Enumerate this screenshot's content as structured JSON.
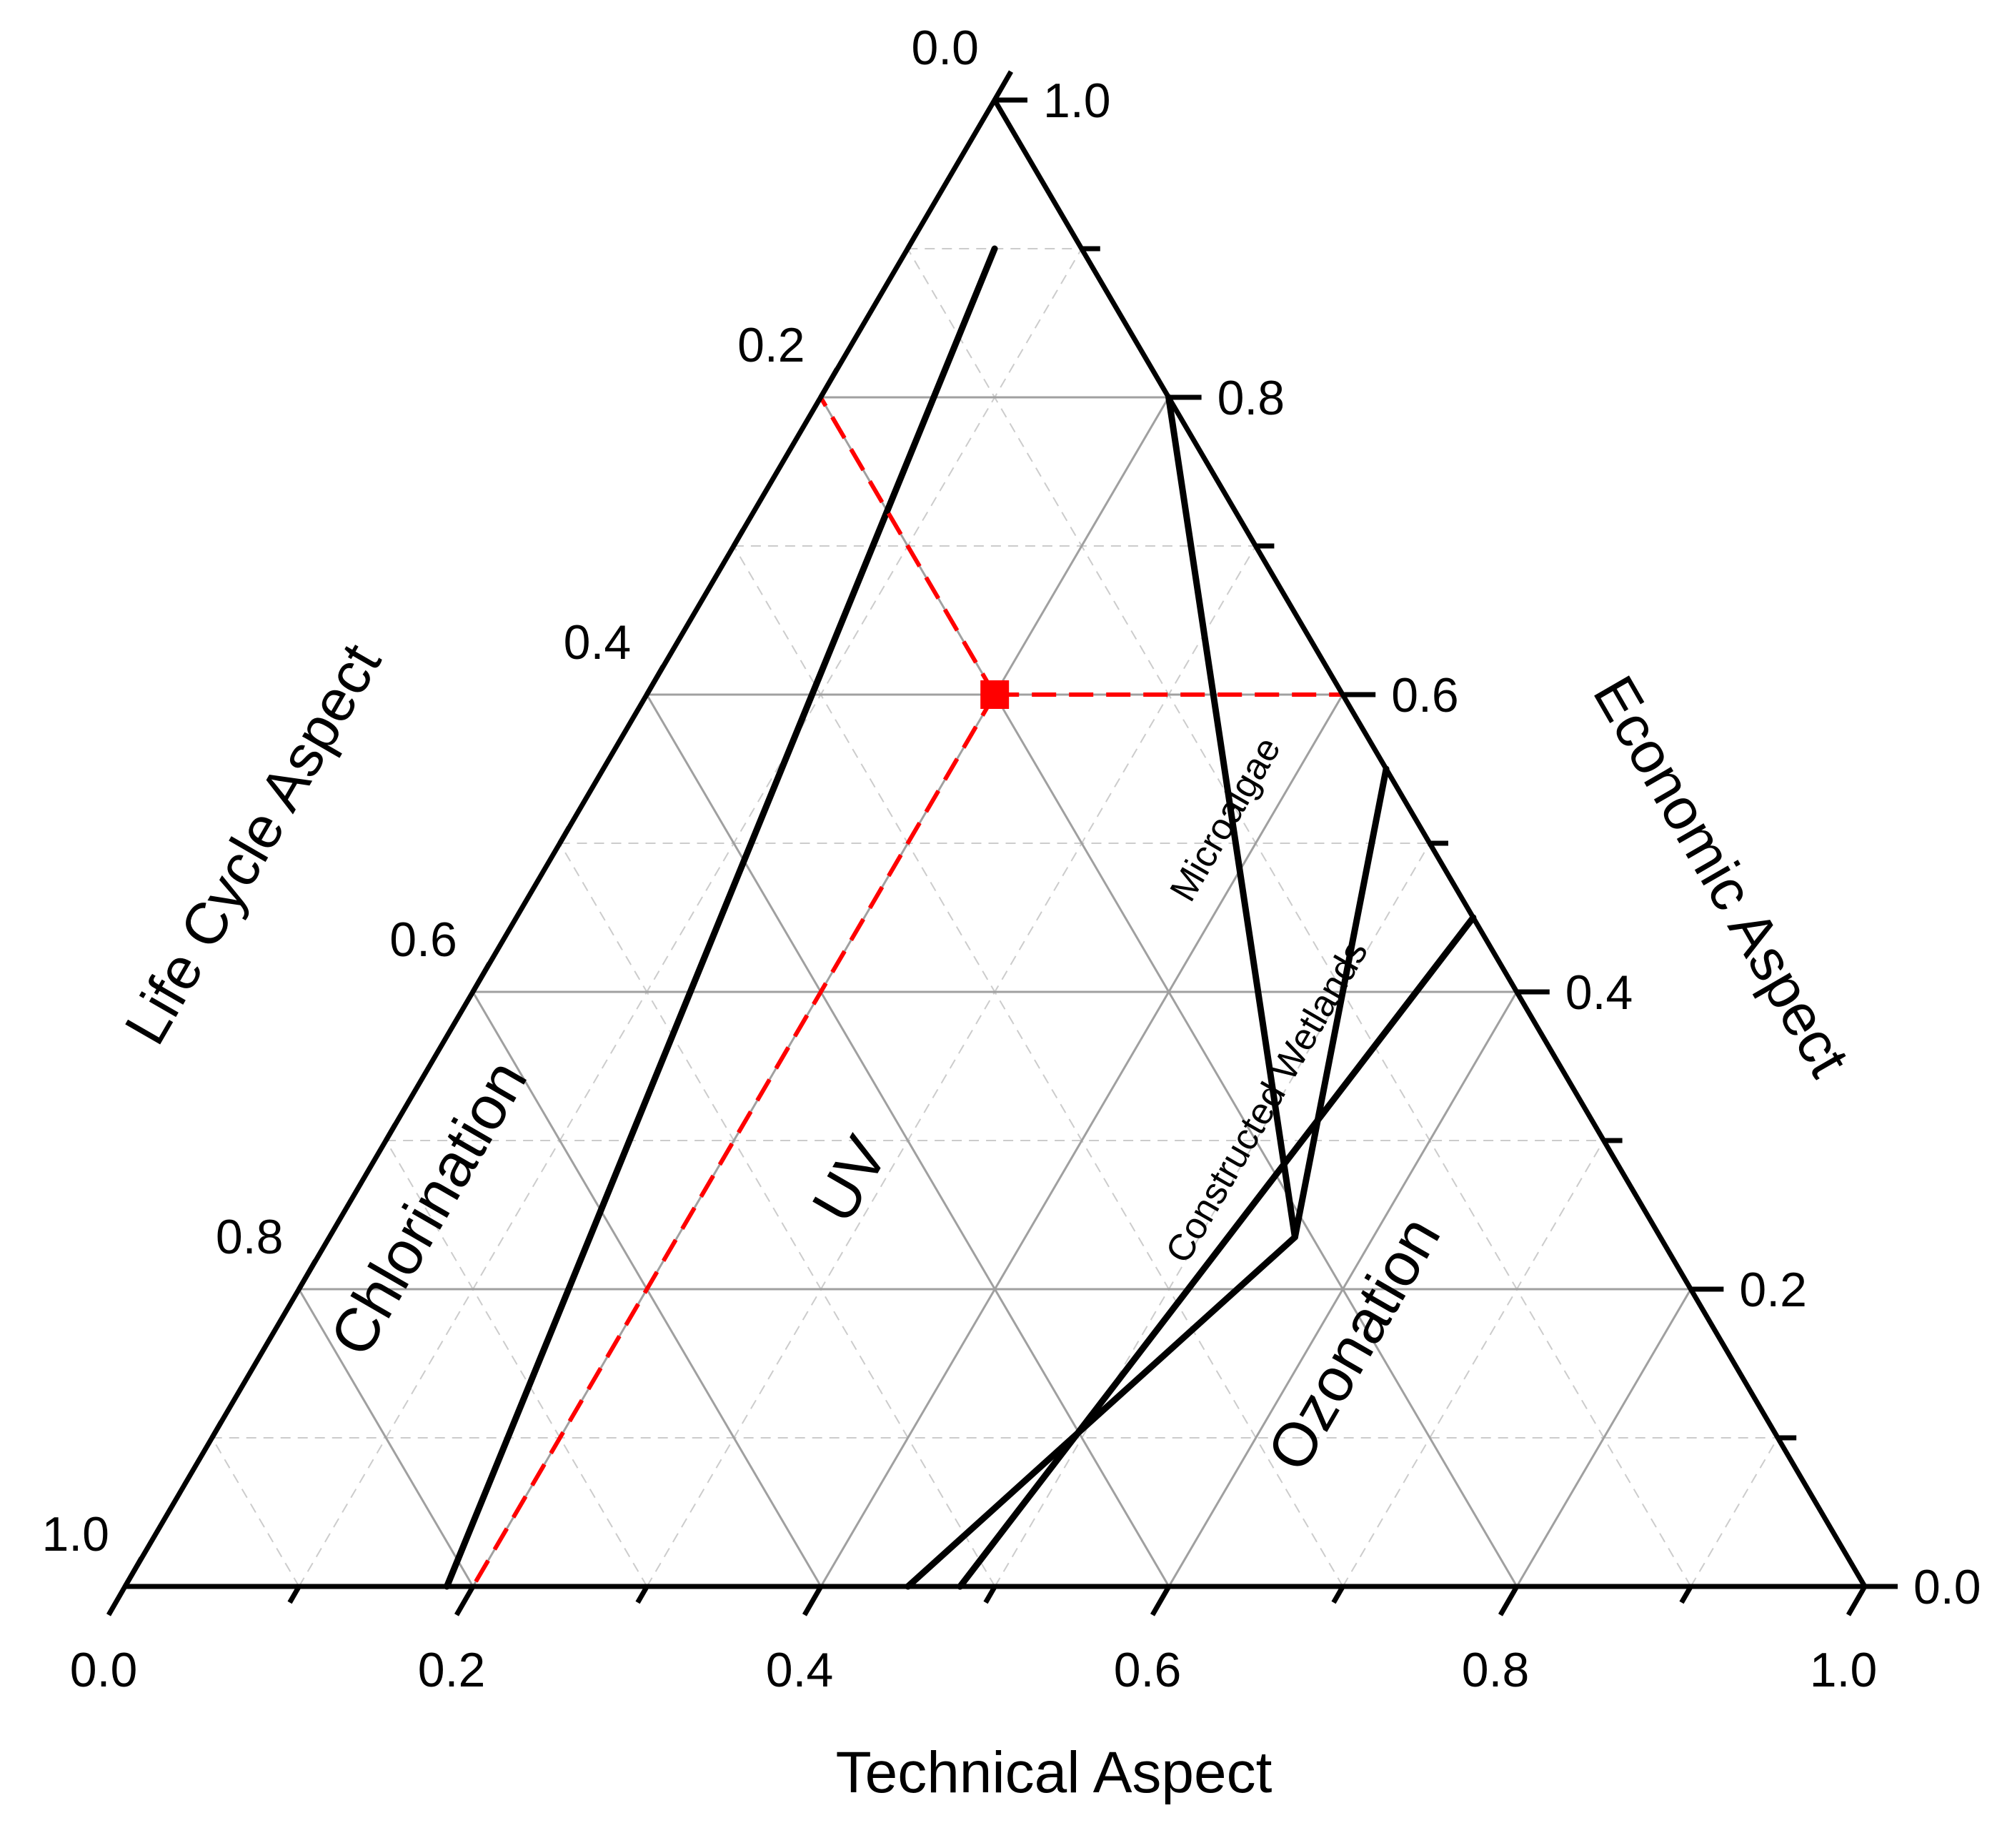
{
  "chart_data": {
    "type": "ternary",
    "axes": {
      "bottom": {
        "label": "Technical Aspect",
        "ticks": [
          "0.0",
          "0.2",
          "0.4",
          "0.6",
          "0.8",
          "1.0"
        ],
        "range": [
          0,
          1
        ]
      },
      "left": {
        "label": "Life Cycle Aspect",
        "ticks": [
          "0.0",
          "0.2",
          "0.4",
          "0.6",
          "0.8",
          "1.0"
        ],
        "range": [
          0,
          1
        ]
      },
      "right": {
        "label": "Economic Aspect",
        "ticks": [
          "0.0",
          "0.2",
          "0.4",
          "0.6",
          "0.8",
          "1.0"
        ],
        "range": [
          0,
          1
        ]
      }
    },
    "grid": {
      "major": 0.2,
      "minor": 0.1
    },
    "regions": [
      {
        "name": "Chlorination"
      },
      {
        "name": "UV"
      },
      {
        "name": "Microalgae"
      },
      {
        "name": "Constructed Wetlands"
      },
      {
        "name": "Ozonation"
      }
    ],
    "boundaries": [
      {
        "between": [
          "Chlorination",
          "UV"
        ],
        "from": {
          "technical": 0.185,
          "economic": 0.0
        },
        "to": {
          "technical": 0.05,
          "economic": 0.9
        }
      },
      {
        "between": [
          "UV",
          "Microalgae"
        ],
        "from": {
          "technical": 0.555,
          "economic": 0.235
        },
        "to": {
          "technical": 0.2,
          "economic": 0.8
        }
      },
      {
        "between": [
          "UV",
          "Constructed Wetlands"
        ],
        "from": {
          "technical": 0.45,
          "economic": 0.0
        },
        "to": {
          "technical": 0.555,
          "economic": 0.235
        }
      },
      {
        "between": [
          "Microalgae",
          "Constructed Wetlands"
        ],
        "from": {
          "technical": 0.555,
          "economic": 0.235
        },
        "to": {
          "technical": 0.45,
          "economic": 0.55
        }
      },
      {
        "between": [
          "Constructed Wetlands",
          "Ozonation"
        ],
        "from": {
          "technical": 0.48,
          "economic": 0.0
        },
        "to": {
          "technical": 0.55,
          "economic": 0.45
        }
      }
    ],
    "selected_point": {
      "technical": 0.2,
      "economic": 0.6,
      "life_cycle": 0.2
    },
    "guide_lines_color": "#ff0000",
    "boundary_color": "#000000"
  }
}
